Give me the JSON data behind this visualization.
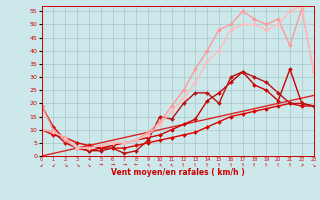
{
  "xlabel": "Vent moyen/en rafales ( km/h )",
  "bg_color": "#cde8ea",
  "grid_color": "#a8c8ca",
  "xlim": [
    0,
    23
  ],
  "ylim": [
    0,
    57
  ],
  "x_ticks": [
    0,
    1,
    2,
    3,
    4,
    5,
    6,
    7,
    8,
    9,
    10,
    11,
    12,
    13,
    14,
    15,
    16,
    17,
    18,
    19,
    20,
    21,
    22,
    23
  ],
  "y_ticks": [
    0,
    5,
    10,
    15,
    20,
    25,
    30,
    35,
    40,
    45,
    50,
    55
  ],
  "arrow_labels": [
    "↙",
    "↙",
    "↘",
    "↘",
    "↘",
    "→",
    "→",
    "→",
    "←",
    "↖",
    "↖",
    "↖",
    "↑",
    "↑",
    "↑",
    "↑",
    "↑",
    "↑",
    "↑",
    "↑",
    "↑",
    "↑",
    "↗",
    "↘"
  ],
  "series": [
    {
      "x": [
        0,
        1,
        2,
        3,
        4,
        5,
        6,
        7,
        8,
        9,
        10,
        11,
        12,
        13,
        14,
        15,
        16,
        17,
        18,
        19,
        20,
        21,
        22,
        23
      ],
      "y": [
        0,
        1,
        2,
        3,
        4,
        5,
        6,
        7,
        8,
        9,
        10,
        11,
        12,
        13,
        14,
        15,
        16,
        17,
        18,
        19,
        20,
        21,
        22,
        23
      ],
      "color": "#dd2222",
      "lw": 1.0,
      "marker": null,
      "ms": 0
    },
    {
      "x": [
        0,
        1,
        2,
        3,
        4,
        5,
        6,
        7,
        8,
        9,
        10,
        11,
        12,
        13,
        14,
        15,
        16,
        17,
        18,
        19,
        20,
        21,
        22,
        23
      ],
      "y": [
        10,
        8,
        7,
        5,
        4,
        3,
        3,
        3,
        4,
        5,
        6,
        7,
        8,
        9,
        11,
        13,
        15,
        16,
        17,
        18,
        19,
        20,
        19,
        19
      ],
      "color": "#dd0000",
      "lw": 1.0,
      "marker": "D",
      "ms": 2.0
    },
    {
      "x": [
        0,
        1,
        2,
        3,
        4,
        5,
        6,
        7,
        8,
        9,
        10,
        11,
        12,
        13,
        14,
        15,
        16,
        17,
        18,
        19,
        20,
        21,
        22,
        23
      ],
      "y": [
        19,
        11,
        6,
        3,
        2,
        3,
        4,
        5,
        6,
        7,
        8,
        10,
        12,
        14,
        21,
        24,
        28,
        32,
        27,
        25,
        21,
        33,
        20,
        19
      ],
      "color": "#cc0000",
      "lw": 1.0,
      "marker": "D",
      "ms": 2.0
    },
    {
      "x": [
        0,
        1,
        2,
        3,
        4,
        5,
        6,
        7,
        8,
        9,
        10,
        11,
        12,
        13,
        14,
        15,
        16,
        17,
        18,
        19,
        20,
        21,
        22,
        23
      ],
      "y": [
        10,
        9,
        5,
        3,
        2,
        2,
        3,
        1,
        2,
        6,
        15,
        14,
        20,
        24,
        24,
        20,
        30,
        32,
        30,
        28,
        24,
        20,
        20,
        19
      ],
      "color": "#bb1111",
      "lw": 1.0,
      "marker": "D",
      "ms": 2.0
    },
    {
      "x": [
        0,
        1,
        2,
        3,
        4,
        5,
        6,
        7,
        8,
        9,
        10,
        11,
        12,
        13,
        14,
        15,
        16,
        17,
        18,
        19,
        20,
        21,
        22,
        23
      ],
      "y": [
        19,
        10,
        6,
        3,
        3,
        4,
        5,
        5,
        6,
        9,
        13,
        19,
        25,
        33,
        40,
        48,
        50,
        55,
        52,
        50,
        52,
        42,
        56,
        32
      ],
      "color": "#ff9999",
      "lw": 1.0,
      "marker": "D",
      "ms": 2.0
    },
    {
      "x": [
        0,
        1,
        2,
        3,
        4,
        5,
        6,
        7,
        8,
        9,
        10,
        11,
        12,
        13,
        14,
        15,
        16,
        17,
        18,
        19,
        20,
        21,
        22,
        23
      ],
      "y": [
        10,
        9,
        7,
        3,
        3,
        4,
        5,
        5,
        6,
        8,
        12,
        17,
        22,
        28,
        36,
        40,
        48,
        50,
        50,
        48,
        50,
        55,
        57,
        32
      ],
      "color": "#ffbbbb",
      "lw": 1.0,
      "marker": "D",
      "ms": 2.0
    }
  ]
}
